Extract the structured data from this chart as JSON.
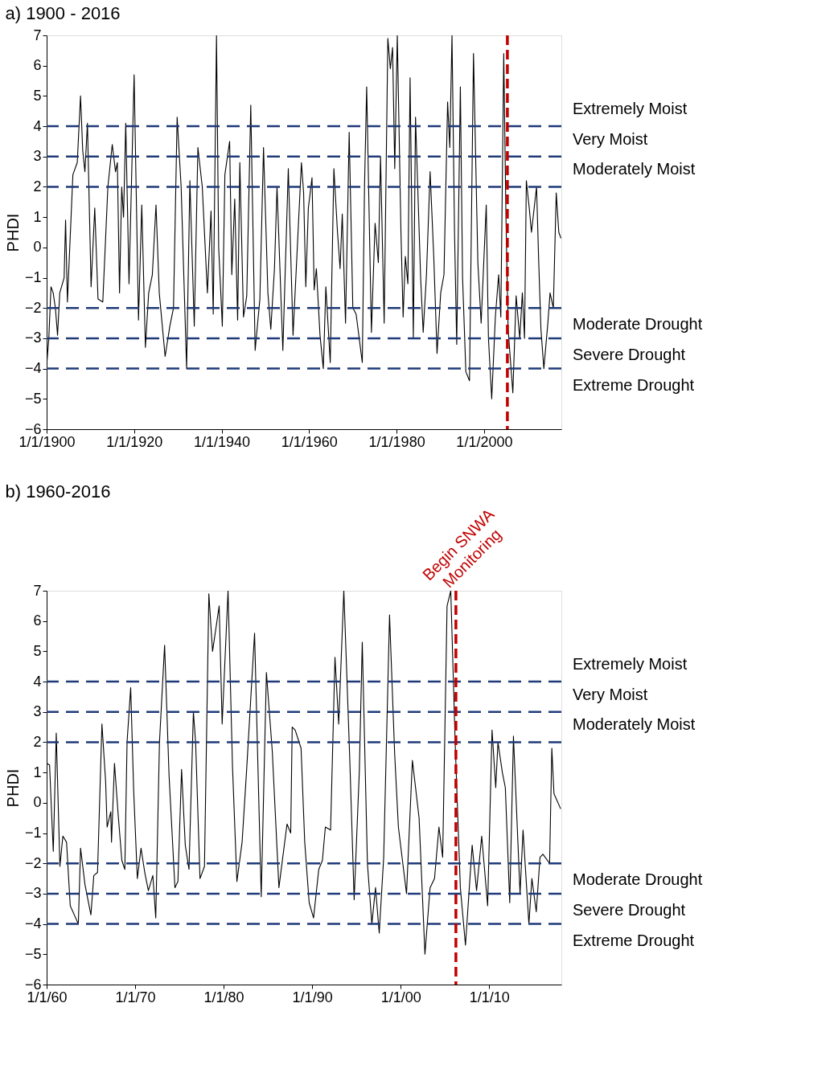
{
  "chart_data": [
    {
      "type": "line",
      "title": "a) 1900 - 2016",
      "ylabel": "PHDI",
      "grid": false,
      "xlim": [
        "1900-01-01",
        "2017-09"
      ],
      "xticks": [
        {
          "value": "1900-01-01",
          "label": "1/1/1900"
        },
        {
          "value": "1920-01-01",
          "label": "1/1/1920"
        },
        {
          "value": "1940-01-01",
          "label": "1/1/1940"
        },
        {
          "value": "1960-01-01",
          "label": "1/1/1960"
        },
        {
          "value": "1980-01-01",
          "label": "1/1/1980"
        },
        {
          "value": "2000-01-01",
          "label": "1/1/2000"
        }
      ],
      "ylim": [
        -6,
        7
      ],
      "yticks": [
        -6,
        -5,
        -4,
        -3,
        -2,
        -1,
        0,
        1,
        2,
        3,
        4,
        5,
        6,
        7
      ],
      "series": [
        {
          "color": "#000000",
          "x": [
            "1900-01",
            "1900-07",
            "1901-01",
            "1901-07",
            "1902-01",
            "1902-07",
            "1903-01",
            "1904-01",
            "1904-05",
            "1904-10",
            "1906-01",
            "1907-01",
            "1907-10",
            "1908-04",
            "1908-10",
            "1909-05",
            "1910-03",
            "1911-01",
            "1911-10",
            "1912-11",
            "1914-01",
            "1915-01",
            "1915-10",
            "1916-03",
            "1916-09",
            "1917-03",
            "1917-08",
            "1918-02",
            "1918-11",
            "1920-01",
            "1921-01",
            "1921-10",
            "1922-08",
            "1923-05",
            "1924-03",
            "1925-01",
            "1925-10",
            "1927-02",
            "1928-03",
            "1929-01",
            "1929-11",
            "1930-10",
            "1932-01",
            "1932-10",
            "1933-10",
            "1934-08",
            "1935-08",
            "1936-10",
            "1937-08",
            "1938-02",
            "1938-11",
            "1939-05",
            "1940-03",
            "1940-10",
            "1941-11",
            "1942-05",
            "1943-01",
            "1943-09",
            "1944-03",
            "1945-01",
            "1945-10",
            "1946-09",
            "1947-09",
            "1948-10",
            "1949-08",
            "1950-08",
            "1951-04",
            "1952-02",
            "1952-09",
            "1954-01",
            "1955-04",
            "1956-05",
            "1958-04",
            "1958-10",
            "1959-04",
            "1959-11",
            "1960-09",
            "1961-03",
            "1961-09",
            "1962-07",
            "1963-04",
            "1963-11",
            "1964-11",
            "1965-09",
            "1966-07",
            "1967-02",
            "1967-08",
            "1968-05",
            "1969-03",
            "1970-01",
            "1970-10",
            "1972-03",
            "1972-09",
            "1973-03",
            "1974-04",
            "1975-02",
            "1975-11",
            "1976-05",
            "1977-03",
            "1978-01",
            "1978-08",
            "1979-02",
            "1979-08",
            "1980-03",
            "1981-01",
            "1981-07",
            "1982-01",
            "1982-08",
            "1983-02",
            "1983-11",
            "1984-05",
            "1985-07",
            "1986-02",
            "1986-11",
            "1987-09",
            "1988-07",
            "1989-04",
            "1990-02",
            "1990-11",
            "1991-09",
            "1992-03",
            "1992-09",
            "1993-04",
            "1993-10",
            "1994-08",
            "1995-02",
            "1995-11",
            "1996-09",
            "1997-08",
            "1998-08",
            "1999-05",
            "2000-07",
            "2001-01",
            "2001-10",
            "2002-08",
            "2003-05",
            "2003-11",
            "2004-07",
            "2005-01",
            "2005-07",
            "2006-08",
            "2007-05",
            "2008-03",
            "2008-10",
            "2009-04",
            "2009-09",
            "2010-05",
            "2010-11",
            "2012-01",
            "2012-07",
            "2013-01",
            "2013-09",
            "2014-08",
            "2015-02",
            "2015-11",
            "2016-07",
            "2017-02",
            "2017-08"
          ],
          "values": [
            -3.9,
            -3.0,
            -1.3,
            -1.5,
            -2.0,
            -2.9,
            -1.5,
            -1.0,
            0.9,
            -1.8,
            2.4,
            2.8,
            5.0,
            3.2,
            2.5,
            4.1,
            -1.3,
            1.3,
            -1.7,
            -1.8,
            2.0,
            3.4,
            2.5,
            2.8,
            -1.5,
            2.0,
            1.0,
            4.1,
            -1.2,
            5.7,
            -2.4,
            1.4,
            -3.3,
            -1.5,
            -0.9,
            1.4,
            -1.5,
            -3.6,
            -2.6,
            -2.0,
            4.3,
            2.0,
            -4.0,
            2.2,
            -2.6,
            3.3,
            2.0,
            -1.5,
            1.2,
            -2.2,
            7.0,
            0.0,
            -2.6,
            2.4,
            3.5,
            -0.9,
            1.6,
            -2.4,
            2.8,
            -2.3,
            -1.6,
            4.7,
            -3.4,
            -1.7,
            3.3,
            -1.5,
            -2.7,
            -0.7,
            2.0,
            -3.4,
            2.6,
            -2.9,
            2.8,
            1.8,
            -1.3,
            1.3,
            2.3,
            -1.4,
            -0.7,
            -2.9,
            -4.0,
            -1.3,
            -3.8,
            2.6,
            0.5,
            -0.7,
            1.1,
            -2.5,
            3.8,
            -2.0,
            -2.2,
            -3.8,
            2.0,
            5.3,
            -2.8,
            0.8,
            -0.5,
            3.0,
            -2.5,
            6.9,
            5.9,
            6.6,
            2.6,
            7.0,
            0.5,
            -2.3,
            -0.3,
            -1.2,
            5.6,
            -3.0,
            4.3,
            -1.0,
            -2.8,
            -0.9,
            2.5,
            -0.3,
            -3.5,
            -1.5,
            -0.9,
            4.8,
            3.3,
            7.0,
            0.5,
            -3.2,
            5.3,
            -1.0,
            -4.1,
            -4.4,
            6.4,
            -0.5,
            -2.5,
            1.4,
            -3.0,
            -5.0,
            -2.3,
            -0.9,
            -2.3,
            6.4,
            1.0,
            -2.7,
            -4.8,
            -1.6,
            -3.0,
            -1.5,
            -3.0,
            2.2,
            1.3,
            0.5,
            2.0,
            -0.5,
            -2.7,
            -4.0,
            -2.5,
            -1.5,
            -2.0,
            1.8,
            0.5,
            0.3
          ]
        }
      ],
      "ref_lines": [
        {
          "axis": "y",
          "value": 4,
          "label": "Extremely Moist",
          "color": "#1f3a78",
          "line_style": "dashed"
        },
        {
          "axis": "y",
          "value": 3,
          "label": "Very Moist",
          "color": "#1f3a78",
          "line_style": "dashed"
        },
        {
          "axis": "y",
          "value": 2,
          "label": "Moderately Moist",
          "color": "#1f3a78",
          "line_style": "dashed"
        },
        {
          "axis": "y",
          "value": -2,
          "label": "Moderate Drought",
          "color": "#1f3a78",
          "line_style": "dashed"
        },
        {
          "axis": "y",
          "value": -3,
          "label": "Severe Drought",
          "color": "#1f3a78",
          "line_style": "dashed"
        },
        {
          "axis": "y",
          "value": -4,
          "label": "Extreme Drought",
          "color": "#1f3a78",
          "line_style": "dashed"
        },
        {
          "axis": "x",
          "value": "2005-05",
          "color": "#c00000",
          "line_style": "dashed"
        }
      ]
    },
    {
      "type": "line",
      "title": "b) 1960-2016",
      "ylabel": "PHDI",
      "grid": false,
      "xlim": [
        "1960-01-01",
        "2018-03"
      ],
      "xticks": [
        {
          "value": "1960-01-01",
          "label": "1/1/60"
        },
        {
          "value": "1970-01-01",
          "label": "1/1/70"
        },
        {
          "value": "1980-01-01",
          "label": "1/1/80"
        },
        {
          "value": "1990-01-01",
          "label": "1/1/90"
        },
        {
          "value": "2000-01-01",
          "label": "1/1/00"
        },
        {
          "value": "2010-01-01",
          "label": "1/1/10"
        }
      ],
      "ylim": [
        -6,
        7
      ],
      "yticks": [
        -6,
        -5,
        -4,
        -3,
        -2,
        -1,
        0,
        1,
        2,
        3,
        4,
        5,
        6,
        7
      ],
      "series": [
        {
          "color": "#000000",
          "x": [
            "1960-01",
            "1960-05",
            "1960-08",
            "1960-10",
            "1961-02",
            "1961-07",
            "1961-11",
            "1962-04",
            "1962-09",
            "1963-08",
            "1963-11",
            "1964-05",
            "1965-01",
            "1965-05",
            "1965-10",
            "1966-04",
            "1966-09",
            "1966-11",
            "1967-04",
            "1967-05",
            "1967-09",
            "1968-02",
            "1968-07",
            "1968-11",
            "1969-02",
            "1969-07",
            "1969-11",
            "1970-04",
            "1970-09",
            "1971-02",
            "1971-07",
            "1972-01",
            "1972-05",
            "1972-10",
            "1973-05",
            "1973-11",
            "1974-07",
            "1974-11",
            "1975-04",
            "1975-09",
            "1976-02",
            "1976-08",
            "1976-11",
            "1977-05",
            "1977-11",
            "1978-05",
            "1978-10",
            "1979-07",
            "1979-11",
            "1980-07",
            "1981-01",
            "1981-07",
            "1982-02",
            "1982-08",
            "1983-07",
            "1984-04",
            "1984-11",
            "1985-07",
            "1986-04",
            "1987-03",
            "1987-08",
            "1987-10",
            "1988-02",
            "1988-10",
            "1989-03",
            "1989-09",
            "1990-03",
            "1990-10",
            "1991-03",
            "1991-07",
            "1992-02",
            "1992-08",
            "1993-01",
            "1993-08",
            "1994-04",
            "1994-10",
            "1995-05",
            "1995-09",
            "1996-04",
            "1996-10",
            "1997-03",
            "1997-08",
            "1998-02",
            "1998-10",
            "1999-05",
            "1999-10",
            "2000-03",
            "2000-09",
            "2001-05",
            "2002-02",
            "2002-10",
            "2003-05",
            "2003-11",
            "2004-05",
            "2004-10",
            "2005-04",
            "2005-09",
            "2006-03",
            "2006-10",
            "2007-05",
            "2008-02",
            "2008-08",
            "2009-03",
            "2009-11",
            "2010-05",
            "2010-10",
            "2011-01",
            "2011-07",
            "2011-11",
            "2012-05",
            "2012-10",
            "2013-07",
            "2013-11",
            "2014-07",
            "2014-11",
            "2015-05",
            "2015-10",
            "2016-02",
            "2016-11",
            "2017-02",
            "2017-05",
            "2018-02"
          ],
          "values": [
            1.3,
            1.25,
            -0.5,
            -1.6,
            2.3,
            -2.1,
            -1.1,
            -1.3,
            -3.4,
            -4.0,
            -1.5,
            -2.7,
            -3.7,
            -2.4,
            -2.3,
            2.6,
            0.7,
            -0.8,
            -0.3,
            -1.3,
            1.3,
            -0.4,
            -1.9,
            -2.2,
            2.0,
            3.8,
            0.4,
            -2.5,
            -1.5,
            -2.3,
            -2.9,
            -2.4,
            -3.8,
            2.0,
            5.2,
            0.9,
            -2.8,
            -2.6,
            1.1,
            -1.4,
            -2.2,
            3.0,
            2.0,
            -2.5,
            -2.1,
            6.9,
            5.0,
            6.5,
            2.6,
            7.0,
            1.2,
            -2.6,
            -1.3,
            1.0,
            5.6,
            -3.1,
            4.3,
            1.7,
            -2.8,
            -0.7,
            -1.0,
            2.5,
            2.4,
            1.8,
            -1.3,
            -3.3,
            -3.8,
            -2.2,
            -1.9,
            -0.8,
            -0.9,
            4.8,
            2.6,
            7.0,
            1.5,
            -3.2,
            1.0,
            5.3,
            -2.0,
            -4.0,
            -2.8,
            -4.3,
            -1.8,
            6.2,
            1.6,
            -0.8,
            -1.8,
            -3.0,
            1.4,
            -0.5,
            -5.0,
            -2.8,
            -2.5,
            -0.8,
            -1.8,
            6.5,
            7.0,
            2.0,
            -2.8,
            -4.7,
            -1.4,
            -2.9,
            -1.1,
            -3.4,
            2.4,
            0.5,
            2.0,
            1.0,
            0.5,
            -3.3,
            2.2,
            -3.0,
            -0.9,
            -4.0,
            -2.5,
            -3.6,
            -1.8,
            -1.7,
            -2.0,
            1.8,
            0.3,
            -0.2
          ]
        }
      ],
      "ref_lines": [
        {
          "axis": "y",
          "value": 4,
          "label": "Extremely Moist",
          "color": "#1f3a78",
          "line_style": "dashed"
        },
        {
          "axis": "y",
          "value": 3,
          "label": "Very Moist",
          "color": "#1f3a78",
          "line_style": "dashed"
        },
        {
          "axis": "y",
          "value": 2,
          "label": "Moderately Moist",
          "color": "#1f3a78",
          "line_style": "dashed"
        },
        {
          "axis": "y",
          "value": -2,
          "label": "Moderate Drought",
          "color": "#1f3a78",
          "line_style": "dashed"
        },
        {
          "axis": "y",
          "value": -3,
          "label": "Severe Drought",
          "color": "#1f3a78",
          "line_style": "dashed"
        },
        {
          "axis": "y",
          "value": -4,
          "label": "Extreme Drought",
          "color": "#1f3a78",
          "line_style": "dashed"
        },
        {
          "axis": "x",
          "value": "2006-04",
          "label": "Begin SNWA Monitoring",
          "color": "#c00000",
          "line_style": "dashed"
        }
      ]
    }
  ]
}
